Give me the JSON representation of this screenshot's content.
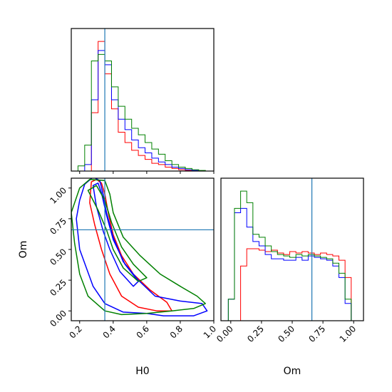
{
  "chart_data": {
    "type": "corner",
    "parameters": [
      "H0",
      "Om"
    ],
    "truth": {
      "H0": 0.35,
      "Om": 0.66
    },
    "truth_color": "#1f77b4",
    "series_colors": [
      "#ff0000",
      "#0000ff",
      "#008000"
    ],
    "panels": [
      {
        "id": "H0-histogram",
        "type": "histogram",
        "xlim": [
          0.15,
          1.0
        ],
        "bins": [
          0.15,
          0.19,
          0.23,
          0.27,
          0.31,
          0.35,
          0.39,
          0.43,
          0.47,
          0.51,
          0.55,
          0.59,
          0.63,
          0.67,
          0.71,
          0.75,
          0.79,
          0.83,
          0.87,
          0.91,
          0.95,
          1.0
        ],
        "series": [
          {
            "color": "#ff0000",
            "counts": [
              0,
              0,
              0,
              0.45,
              1.0,
              0.75,
              0.48,
              0.3,
              0.22,
              0.16,
              0.12,
              0.09,
              0.06,
              0.05,
              0.03,
              0.02,
              0.01,
              0.005,
              0,
              0,
              0
            ]
          },
          {
            "color": "#0000ff",
            "counts": [
              0,
              0,
              0.05,
              0.55,
              0.93,
              0.82,
              0.55,
              0.4,
              0.32,
              0.24,
              0.18,
              0.14,
              0.1,
              0.07,
              0.05,
              0.03,
              0.02,
              0.01,
              0.005,
              0,
              0
            ]
          },
          {
            "color": "#008000",
            "counts": [
              0,
              0.04,
              0.2,
              0.85,
              0.9,
              0.85,
              0.65,
              0.5,
              0.4,
              0.33,
              0.28,
              0.22,
              0.17,
              0.13,
              0.08,
              0.05,
              0.03,
              0.02,
              0.01,
              0.005,
              0
            ]
          }
        ]
      },
      {
        "id": "Om-histogram",
        "type": "histogram",
        "xlim": [
          -0.08,
          1.08
        ],
        "xticks": [
          "0.00",
          "0.25",
          "0.50",
          "0.75",
          "1.00"
        ],
        "xtick_values": [
          0.0,
          0.25,
          0.5,
          0.75,
          1.0
        ],
        "xlabel": "Om",
        "bins": [
          -0.02,
          0.03,
          0.08,
          0.13,
          0.18,
          0.23,
          0.28,
          0.33,
          0.38,
          0.43,
          0.48,
          0.53,
          0.58,
          0.63,
          0.68,
          0.73,
          0.78,
          0.83,
          0.88,
          0.93,
          0.98,
          1.03
        ],
        "series": [
          {
            "color": "#ff0000",
            "counts": [
              0,
              0,
              0.38,
              0.5,
              0.5,
              0.49,
              0.48,
              0.49,
              0.47,
              0.46,
              0.48,
              0.47,
              0.48,
              0.47,
              0.46,
              0.47,
              0.46,
              0.45,
              0.42,
              0.3,
              0
            ]
          },
          {
            "color": "#0000ff",
            "counts": [
              0.15,
              0.75,
              0.78,
              0.65,
              0.55,
              0.52,
              0.46,
              0.43,
              0.43,
              0.42,
              0.42,
              0.44,
              0.42,
              0.45,
              0.44,
              0.43,
              0.42,
              0.38,
              0.3,
              0.12,
              0
            ]
          },
          {
            "color": "#008000",
            "counts": [
              0.15,
              0.78,
              0.9,
              0.82,
              0.6,
              0.58,
              0.52,
              0.48,
              0.46,
              0.45,
              0.44,
              0.46,
              0.45,
              0.46,
              0.45,
              0.44,
              0.43,
              0.4,
              0.33,
              0.15,
              0
            ]
          }
        ]
      },
      {
        "id": "H0-Om-contours",
        "type": "contour",
        "xlim": [
          0.15,
          1.0
        ],
        "ylim": [
          -0.08,
          1.08
        ],
        "xticks": [
          "0.2",
          "0.4",
          "0.6",
          "0.8",
          "1.0"
        ],
        "xtick_values": [
          0.2,
          0.4,
          0.6,
          0.8,
          1.0
        ],
        "yticks": [
          "0.00",
          "0.25",
          "0.50",
          "0.75",
          "1.00"
        ],
        "ytick_values": [
          0.0,
          0.25,
          0.5,
          0.75,
          1.0
        ],
        "xlabel": "H0",
        "ylabel": "Om",
        "series": [
          {
            "color": "#ff0000",
            "contours": [
              [
                [
                  0.27,
                  1.05
                ],
                [
                  0.3,
                  1.07
                ],
                [
                  0.33,
                  1.04
                ],
                [
                  0.35,
                  0.95
                ],
                [
                  0.37,
                  0.8
                ],
                [
                  0.4,
                  0.62
                ],
                [
                  0.45,
                  0.45
                ],
                [
                  0.52,
                  0.3
                ],
                [
                  0.62,
                  0.17
                ],
                [
                  0.72,
                  0.07
                ],
                [
                  0.75,
                  0.0
                ],
                [
                  0.66,
                  0.0
                ],
                [
                  0.55,
                  0.03
                ],
                [
                  0.45,
                  0.12
                ],
                [
                  0.38,
                  0.3
                ],
                [
                  0.33,
                  0.5
                ],
                [
                  0.29,
                  0.7
                ],
                [
                  0.26,
                  0.88
                ],
                [
                  0.27,
                  1.05
                ]
              ]
            ]
          },
          {
            "color": "#0000ff",
            "contours": [
              [
                [
                  0.23,
                  1.03
                ],
                [
                  0.28,
                  1.09
                ],
                [
                  0.32,
                  1.06
                ],
                [
                  0.34,
                  0.95
                ],
                [
                  0.36,
                  0.8
                ],
                [
                  0.4,
                  0.6
                ],
                [
                  0.46,
                  0.4
                ],
                [
                  0.55,
                  0.25
                ],
                [
                  0.65,
                  0.12
                ],
                [
                  0.8,
                  0.08
                ],
                [
                  0.93,
                  0.06
                ],
                [
                  0.96,
                  0.0
                ],
                [
                  0.88,
                  -0.04
                ],
                [
                  0.7,
                  -0.04
                ],
                [
                  0.6,
                  -0.02
                ],
                [
                  0.46,
                  -0.01
                ],
                [
                  0.35,
                  0.06
                ],
                [
                  0.28,
                  0.2
                ],
                [
                  0.24,
                  0.35
                ],
                [
                  0.2,
                  0.5
                ],
                [
                  0.18,
                  0.75
                ],
                [
                  0.2,
                  0.9
                ],
                [
                  0.23,
                  1.03
                ]
              ],
              [
                [
                  0.28,
                  1.02
                ],
                [
                  0.31,
                  1.04
                ],
                [
                  0.33,
                  0.96
                ],
                [
                  0.36,
                  0.78
                ],
                [
                  0.4,
                  0.58
                ],
                [
                  0.47,
                  0.38
                ],
                [
                  0.55,
                  0.24
                ],
                [
                  0.52,
                  0.2
                ],
                [
                  0.44,
                  0.32
                ],
                [
                  0.38,
                  0.5
                ],
                [
                  0.34,
                  0.65
                ],
                [
                  0.3,
                  0.85
                ],
                [
                  0.28,
                  1.02
                ]
              ]
            ]
          },
          {
            "color": "#008000",
            "contours": [
              [
                [
                  0.2,
                  1.0
                ],
                [
                  0.26,
                  1.07
                ],
                [
                  0.35,
                  1.06
                ],
                [
                  0.38,
                  0.95
                ],
                [
                  0.4,
                  0.8
                ],
                [
                  0.46,
                  0.6
                ],
                [
                  0.56,
                  0.45
                ],
                [
                  0.68,
                  0.3
                ],
                [
                  0.8,
                  0.2
                ],
                [
                  0.9,
                  0.12
                ],
                [
                  0.95,
                  0.06
                ],
                [
                  0.88,
                  0.02
                ],
                [
                  0.75,
                  0.0
                ],
                [
                  0.6,
                  -0.02
                ],
                [
                  0.45,
                  -0.03
                ],
                [
                  0.35,
                  0.0
                ],
                [
                  0.25,
                  0.12
                ],
                [
                  0.2,
                  0.3
                ],
                [
                  0.17,
                  0.55
                ],
                [
                  0.15,
                  0.8
                ],
                [
                  0.2,
                  1.0
                ]
              ],
              [
                [
                  0.25,
                  0.98
                ],
                [
                  0.3,
                  1.02
                ],
                [
                  0.35,
                  0.9
                ],
                [
                  0.39,
                  0.72
                ],
                [
                  0.45,
                  0.52
                ],
                [
                  0.52,
                  0.38
                ],
                [
                  0.6,
                  0.27
                ],
                [
                  0.55,
                  0.24
                ],
                [
                  0.46,
                  0.35
                ],
                [
                  0.4,
                  0.5
                ],
                [
                  0.36,
                  0.66
                ],
                [
                  0.31,
                  0.82
                ],
                [
                  0.25,
                  0.98
                ]
              ]
            ]
          }
        ]
      }
    ]
  }
}
